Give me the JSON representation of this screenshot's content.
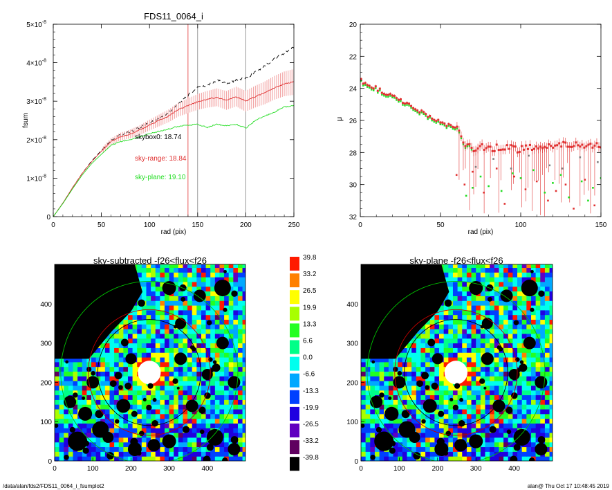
{
  "footer": {
    "left": "/data/alan/fds2/FDS11_0064_i_fsumplot2",
    "right": "alan@  Thu Oct 17 10:48:45 2019"
  },
  "colors": {
    "red": "#e03030",
    "pink": "#f2a0a0",
    "green": "#22dd22",
    "black": "#000000",
    "grey": "#7f7f7f"
  },
  "chart_data": [
    {
      "type": "line",
      "title": "FDS11_0064_i",
      "xlabel": "rad (pix)",
      "ylabel": "fsum",
      "xlim": [
        0,
        250
      ],
      "ylim": [
        0,
        5e-08
      ],
      "x_ticks": [
        "0",
        "50",
        "100",
        "150",
        "200",
        "250"
      ],
      "y_ticks": [
        {
          "mant": "0",
          "exp": ""
        },
        {
          "mant": "1×10",
          "exp": "-8"
        },
        {
          "mant": "2×10",
          "exp": "-8"
        },
        {
          "mant": "3×10",
          "exp": "-8"
        },
        {
          "mant": "4×10",
          "exp": "-8"
        },
        {
          "mant": "5×10",
          "exp": "-8"
        }
      ],
      "vertical_lines": [
        {
          "x": 140,
          "color": "red"
        },
        {
          "x": 150,
          "color": "grey"
        },
        {
          "x": 200,
          "color": "grey"
        }
      ],
      "series": [
        {
          "color": "black",
          "dashed": true,
          "x": [
            0,
            10,
            20,
            30,
            40,
            50,
            60,
            70,
            80,
            90,
            100,
            110,
            120,
            130,
            140,
            150,
            160,
            170,
            180,
            190,
            200,
            210,
            220,
            230,
            240,
            250
          ],
          "y": [
            0,
            3.5e-09,
            7.5e-09,
            1.12e-08,
            1.45e-08,
            1.72e-08,
            1.98e-08,
            2.12e-08,
            2.2e-08,
            2.32e-08,
            2.45e-08,
            2.55e-08,
            2.7e-08,
            2.95e-08,
            3.15e-08,
            3.35e-08,
            3.4e-08,
            3.55e-08,
            3.45e-08,
            3.55e-08,
            3.6e-08,
            3.75e-08,
            3.92e-08,
            4.1e-08,
            4.25e-08,
            4.4e-08
          ]
        },
        {
          "color": "red",
          "errorband": true,
          "x": [
            0,
            10,
            20,
            30,
            40,
            50,
            60,
            70,
            80,
            90,
            100,
            110,
            120,
            130,
            140,
            150,
            160,
            170,
            180,
            190,
            200,
            210,
            220,
            230,
            240,
            250
          ],
          "y": [
            0,
            3.5e-09,
            7.5e-09,
            1.12e-08,
            1.43e-08,
            1.7e-08,
            1.95e-08,
            2.08e-08,
            2.15e-08,
            2.25e-08,
            2.38e-08,
            2.5e-08,
            2.62e-08,
            2.78e-08,
            2.88e-08,
            2.98e-08,
            3.05e-08,
            3.1e-08,
            3.02e-08,
            3.12e-08,
            3e-08,
            3.12e-08,
            3.22e-08,
            3.35e-08,
            3.45e-08,
            3.5e-08
          ]
        },
        {
          "color": "green",
          "x": [
            0,
            10,
            20,
            30,
            40,
            50,
            60,
            70,
            80,
            90,
            100,
            110,
            120,
            130,
            140,
            150,
            160,
            170,
            180,
            190,
            200,
            210,
            220,
            230,
            240,
            250
          ],
          "y": [
            0,
            3.4e-09,
            7.2e-09,
            1.08e-08,
            1.38e-08,
            1.62e-08,
            1.85e-08,
            1.95e-08,
            2e-08,
            2.08e-08,
            2.15e-08,
            2.22e-08,
            2.28e-08,
            2.35e-08,
            2.38e-08,
            2.4e-08,
            2.32e-08,
            2.4e-08,
            2.36e-08,
            2.4e-08,
            2.3e-08,
            2.5e-08,
            2.62e-08,
            2.72e-08,
            2.85e-08,
            2.88e-08
          ]
        }
      ],
      "annotations": [
        {
          "text": "skybox0: 18.74",
          "color": "black"
        },
        {
          "text": "sky-range: 18.84",
          "color": "red"
        },
        {
          "text": "sky-plane: 19.10",
          "color": "green"
        }
      ]
    },
    {
      "type": "scatter",
      "xlabel": "rad (pix)",
      "ylabel": "μ",
      "xlim": [
        0,
        150
      ],
      "ylim": [
        32,
        20
      ],
      "x_ticks": [
        "0",
        "50",
        "100",
        "150"
      ],
      "y_ticks": [
        "20",
        "22",
        "24",
        "26",
        "28",
        "30",
        "32"
      ],
      "profile": {
        "x": [
          0,
          5,
          10,
          15,
          20,
          25,
          30,
          35,
          40,
          45,
          50,
          55,
          60,
          65,
          70,
          80,
          90,
          100,
          110,
          120,
          130,
          140,
          150
        ],
        "y": [
          23.5,
          23.75,
          24.0,
          24.25,
          24.5,
          24.75,
          25.0,
          25.3,
          25.6,
          25.9,
          26.1,
          26.35,
          26.5,
          27.6,
          27.7,
          27.7,
          27.7,
          27.8,
          27.7,
          27.6,
          27.5,
          27.6,
          27.5
        ]
      },
      "scatter_green": {
        "x": [
          66,
          70,
          75,
          80,
          88,
          95,
          100,
          108,
          115,
          120,
          125,
          130,
          138,
          142,
          145,
          150
        ],
        "y": [
          30.7,
          30.2,
          29.5,
          30.1,
          30.4,
          29.3,
          29.6,
          29.1,
          30.5,
          29.9,
          29.4,
          30.8,
          29.8,
          31.0,
          30.2,
          29.6
        ]
      },
      "scatter_red": {
        "x": [
          60,
          65,
          70,
          77,
          85,
          90,
          96,
          103,
          110,
          117,
          122,
          128,
          133,
          140,
          146
        ],
        "y": [
          29.4,
          30.0,
          29.2,
          30.5,
          29.0,
          31.2,
          29.5,
          30.3,
          29.8,
          31.0,
          30.4,
          30.0,
          31.5,
          29.7,
          31.3
        ]
      },
      "scatter_grey": {
        "x": [
          72,
          83,
          94,
          105,
          118,
          126,
          137,
          148
        ],
        "y": [
          28.9,
          28.4,
          29.0,
          28.2,
          28.8,
          29.0,
          28.3,
          28.6
        ]
      }
    },
    {
      "type": "heatmap",
      "title": "sky-subtracted -f26<flux<f26",
      "xlim": [
        0,
        500
      ],
      "ylim": [
        0,
        500
      ],
      "x_ticks": [
        "0",
        "100",
        "200",
        "300",
        "400"
      ],
      "y_ticks": [
        "0",
        "100",
        "200",
        "300",
        "400"
      ],
      "center": [
        248,
        225
      ],
      "circles": [
        {
          "r": 135,
          "color": "black"
        },
        {
          "r": 160,
          "color": "red"
        },
        {
          "r": 232,
          "color": "green"
        }
      ]
    },
    {
      "type": "heatmap",
      "title": "sky-plane -f26<flux<f26",
      "xlim": [
        0,
        500
      ],
      "ylim": [
        0,
        500
      ],
      "x_ticks": [
        "0",
        "100",
        "200",
        "300",
        "400"
      ],
      "y_ticks": [
        "0",
        "100",
        "200",
        "300",
        "400"
      ],
      "center": [
        248,
        225
      ],
      "circles": [
        {
          "r": 135,
          "color": "black"
        },
        {
          "r": 160,
          "color": "red"
        },
        {
          "r": 232,
          "color": "green"
        }
      ]
    }
  ],
  "colorbar": {
    "labels": [
      "39.8",
      "33.2",
      "26.5",
      "19.9",
      "13.3",
      "6.6",
      "0.0",
      "-6.6",
      "-13.3",
      "-19.9",
      "-26.5",
      "-33.2",
      "-39.8"
    ],
    "colors": [
      "#ff1a00",
      "#ff8000",
      "#ffff00",
      "#a8ff00",
      "#22ff22",
      "#00ff88",
      "#00ffee",
      "#00a8ff",
      "#0040ff",
      "#2000e0",
      "#6000c0",
      "#600060",
      "#000000"
    ]
  }
}
